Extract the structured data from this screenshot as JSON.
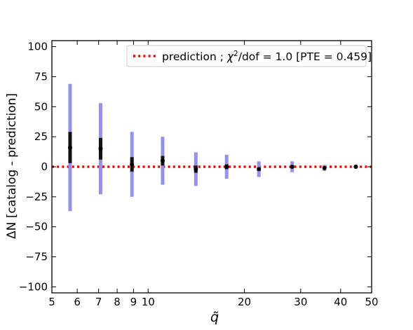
{
  "chart_data": {
    "type": "scatter",
    "title": "",
    "xlabel": "q̃",
    "ylabel": "ΔN [catalog - prediction]",
    "xscale": "log",
    "xlim": [
      5,
      50
    ],
    "ylim": [
      -105,
      105
    ],
    "x_ticks": [
      5,
      6,
      7,
      8,
      9,
      10,
      20,
      30,
      40,
      50
    ],
    "x_tick_labels": [
      "5",
      "6",
      "7",
      "8",
      "9",
      "10",
      "20",
      "30",
      "40",
      "50"
    ],
    "y_ticks": [
      -100,
      -75,
      -50,
      -25,
      0,
      25,
      50,
      75,
      100
    ],
    "y_tick_labels": [
      "−100",
      "−75",
      "−50",
      "−25",
      "0",
      "25",
      "50",
      "75",
      "100"
    ],
    "grid": false,
    "legend": {
      "position": "top-right",
      "label_prefix": "prediction ; ",
      "label_chi": "χ",
      "label_sup": "2",
      "label_suffix": "/dof = 1.0 [PTE = 0.459]"
    },
    "prediction_line": {
      "y": 0,
      "color": "#ff0000",
      "style": "dotted"
    },
    "series": [
      {
        "x": [
          5.7,
          7.1,
          8.9,
          11.1,
          14.1,
          17.6,
          22.2,
          28.2,
          35.6,
          44.6
        ],
        "y": [
          16,
          15,
          2,
          5,
          -2,
          0,
          -2,
          0,
          -1,
          0
        ],
        "err_inner": [
          13,
          9,
          6,
          4,
          3,
          2,
          1.5,
          1,
          0.6,
          0.4
        ],
        "err_outer": [
          53,
          38,
          27,
          20,
          14,
          10,
          6.5,
          4.5,
          2.5,
          1.5
        ],
        "color_point": "#000000",
        "color_inner": "#111111",
        "color_outer": "#8c8cf5"
      }
    ]
  }
}
